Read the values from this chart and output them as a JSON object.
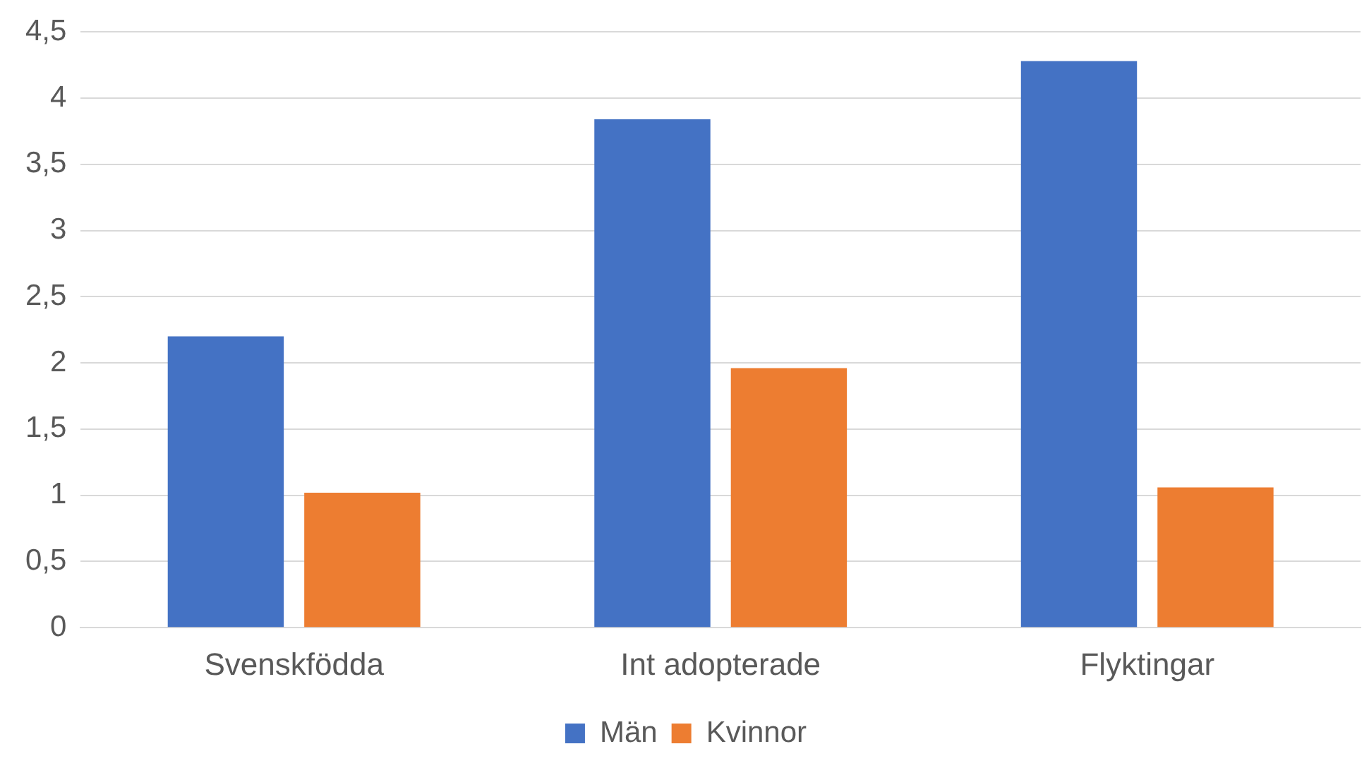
{
  "chart_data": {
    "type": "bar",
    "categories": [
      "Svenskfödda",
      "Int adopterade",
      "Flyktingar"
    ],
    "series": [
      {
        "name": "Män",
        "color": "#4472c4",
        "values": [
          2.2,
          3.84,
          4.28
        ]
      },
      {
        "name": "Kvinnor",
        "color": "#ed7d31",
        "values": [
          1.02,
          1.96,
          1.06
        ]
      }
    ],
    "ylim": [
      0,
      4.5
    ],
    "yticks": [
      0,
      {
        "value": 0.5,
        "label": "0,5"
      },
      1,
      {
        "value": 1.5,
        "label": "1,5"
      },
      2,
      {
        "value": 2.5,
        "label": "2,5"
      },
      3,
      {
        "value": 3.5,
        "label": "3,5"
      },
      4,
      {
        "value": 4.5,
        "label": "4,5"
      }
    ],
    "grid": "y",
    "legend": "bottom"
  }
}
